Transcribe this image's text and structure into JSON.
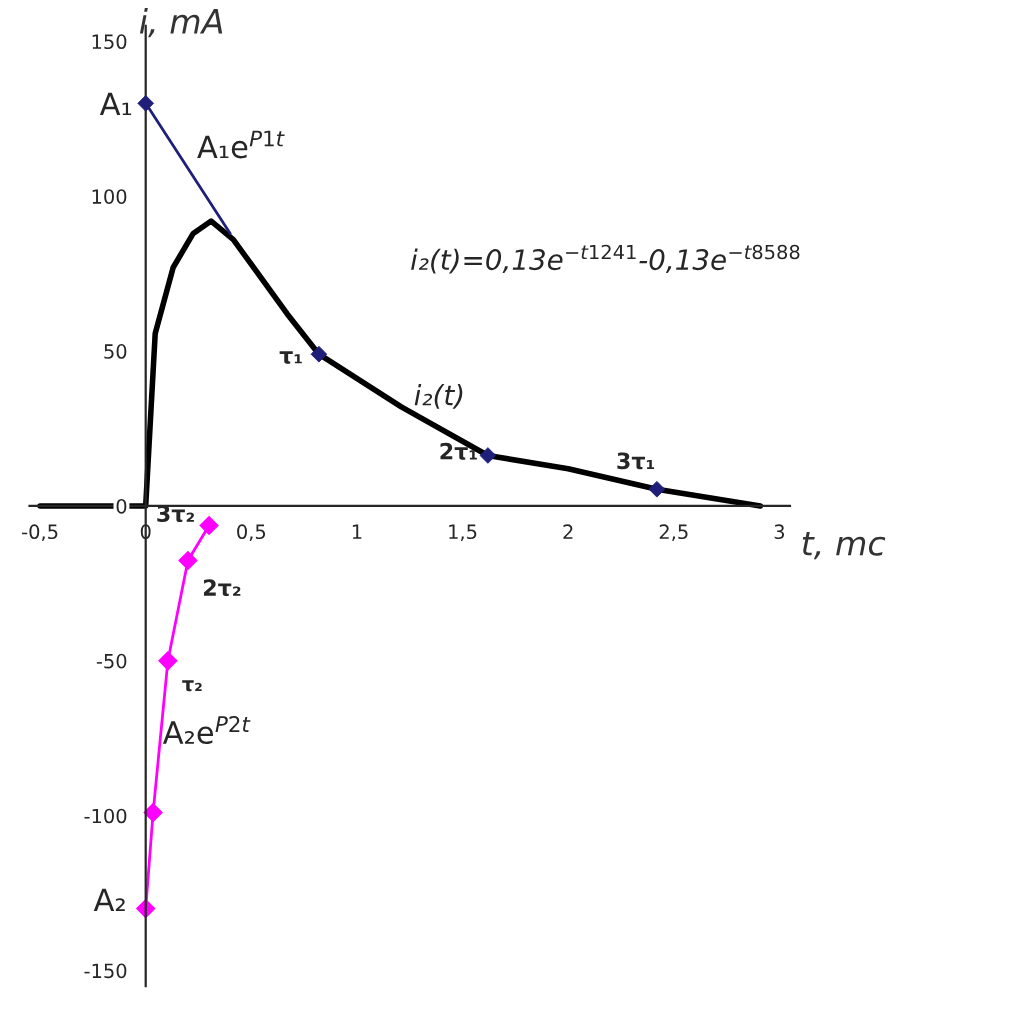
{
  "chart_data": {
    "type": "line",
    "xlabel": "t, mc",
    "ylabel": "i, mA",
    "xlim": [
      -0.55,
      3.05
    ],
    "ylim": [
      -155,
      155
    ],
    "xticks": [
      {
        "value": -0.5,
        "label": "-0,5"
      },
      0,
      {
        "value": 0.5,
        "label": "0,5"
      },
      1,
      {
        "value": 1.5,
        "label": "1,5"
      },
      2,
      {
        "value": 2.5,
        "label": "2,5"
      },
      3
    ],
    "yticks": [
      {
        "value": -150,
        "label": "-150"
      },
      {
        "value": -100,
        "label": "-100"
      },
      {
        "value": -50,
        "label": "-50"
      },
      0,
      50,
      100,
      150
    ],
    "grid": false,
    "legend": false,
    "series": [
      {
        "color": "#000000",
        "marker": "none",
        "line_style": "solid",
        "x": [
          -0.5,
          0,
          0.045,
          0.13,
          0.225,
          0.31,
          0.415,
          0.67,
          0.82,
          1.21,
          1.62,
          2.0,
          2.42,
          2.91
        ],
        "values": [
          0,
          0,
          55.7,
          77,
          88,
          92,
          86,
          62,
          49,
          32,
          16.3,
          12,
          5.4,
          0
        ]
      },
      {
        "color": "#1f1f7a",
        "marker": "none",
        "line_style": "solid",
        "x": [
          0,
          0.4
        ],
        "values": [
          130,
          88
        ]
      },
      {
        "type": "scatter",
        "color": "#1f1f7a",
        "marker": "diamond",
        "x": [
          0,
          0.82,
          1.62,
          2.42
        ],
        "values": [
          130,
          49,
          16.3,
          5.4
        ]
      },
      {
        "color": "#ff00ff",
        "marker": "diamond",
        "line_style": "solid",
        "x": [
          0,
          0.035,
          0.105,
          0.2,
          0.3
        ],
        "values": [
          -130,
          -99,
          -50,
          -17.6,
          -6.3
        ]
      }
    ],
    "annotations": [
      "A₁",
      "A₁e$^{P1t}$",
      "i₂(t)=0,13e$^{−t1241}$-0,13e$^{−t8588}$",
      "τ₁",
      "i₂(t)",
      "2τ₁",
      "3τ₁",
      "3τ₂",
      "2τ₂",
      "τ₂",
      "A₂e$^{P2t}$",
      "A₂"
    ]
  }
}
